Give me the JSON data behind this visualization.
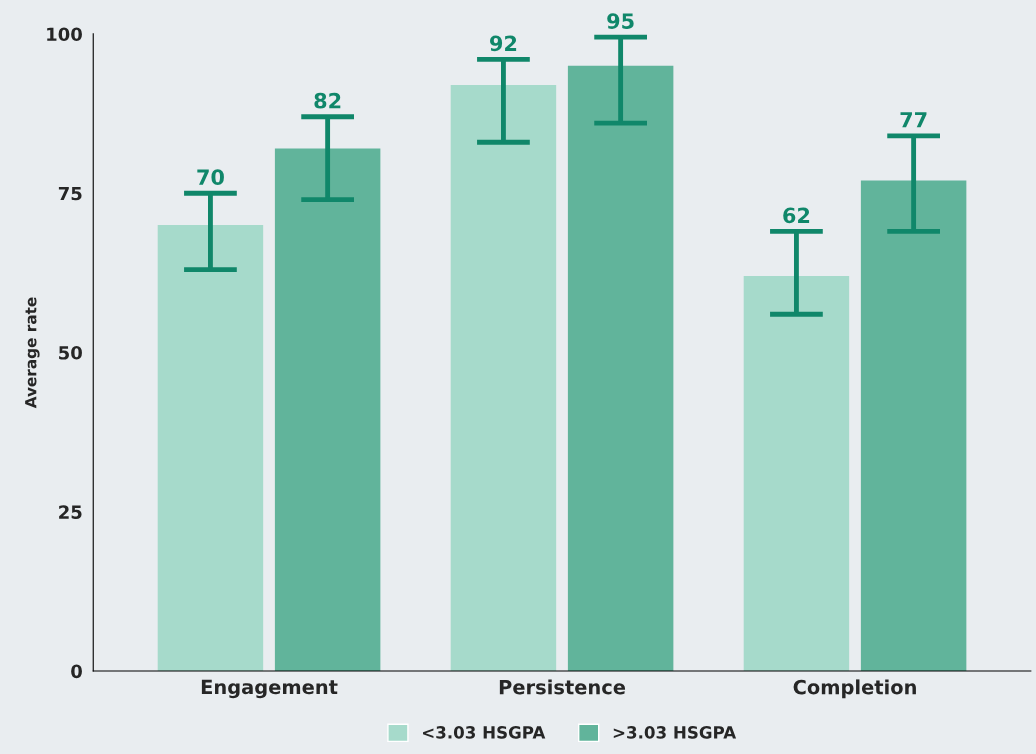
{
  "chart_data": {
    "type": "bar",
    "ylabel": "Average rate",
    "categories": [
      "Engagement",
      "Persistence",
      "Completion"
    ],
    "series": [
      {
        "name": "<3.03 HSGPA",
        "color": "#a6dacb",
        "values": [
          70,
          92,
          62
        ],
        "errors": [
          [
            63,
            75
          ],
          [
            83,
            96
          ],
          [
            56,
            69
          ]
        ]
      },
      {
        "name": ">3.03 HSGPA",
        "color": "#61b49b",
        "values": [
          82,
          95,
          77
        ],
        "errors": [
          [
            74,
            87
          ],
          [
            86,
            99.5
          ],
          [
            69,
            84
          ]
        ]
      }
    ],
    "ylim": [
      0,
      100
    ],
    "yticks": [
      0,
      25,
      50,
      75,
      100
    ],
    "data_labels": true,
    "grid": false,
    "legend": "bottom"
  }
}
